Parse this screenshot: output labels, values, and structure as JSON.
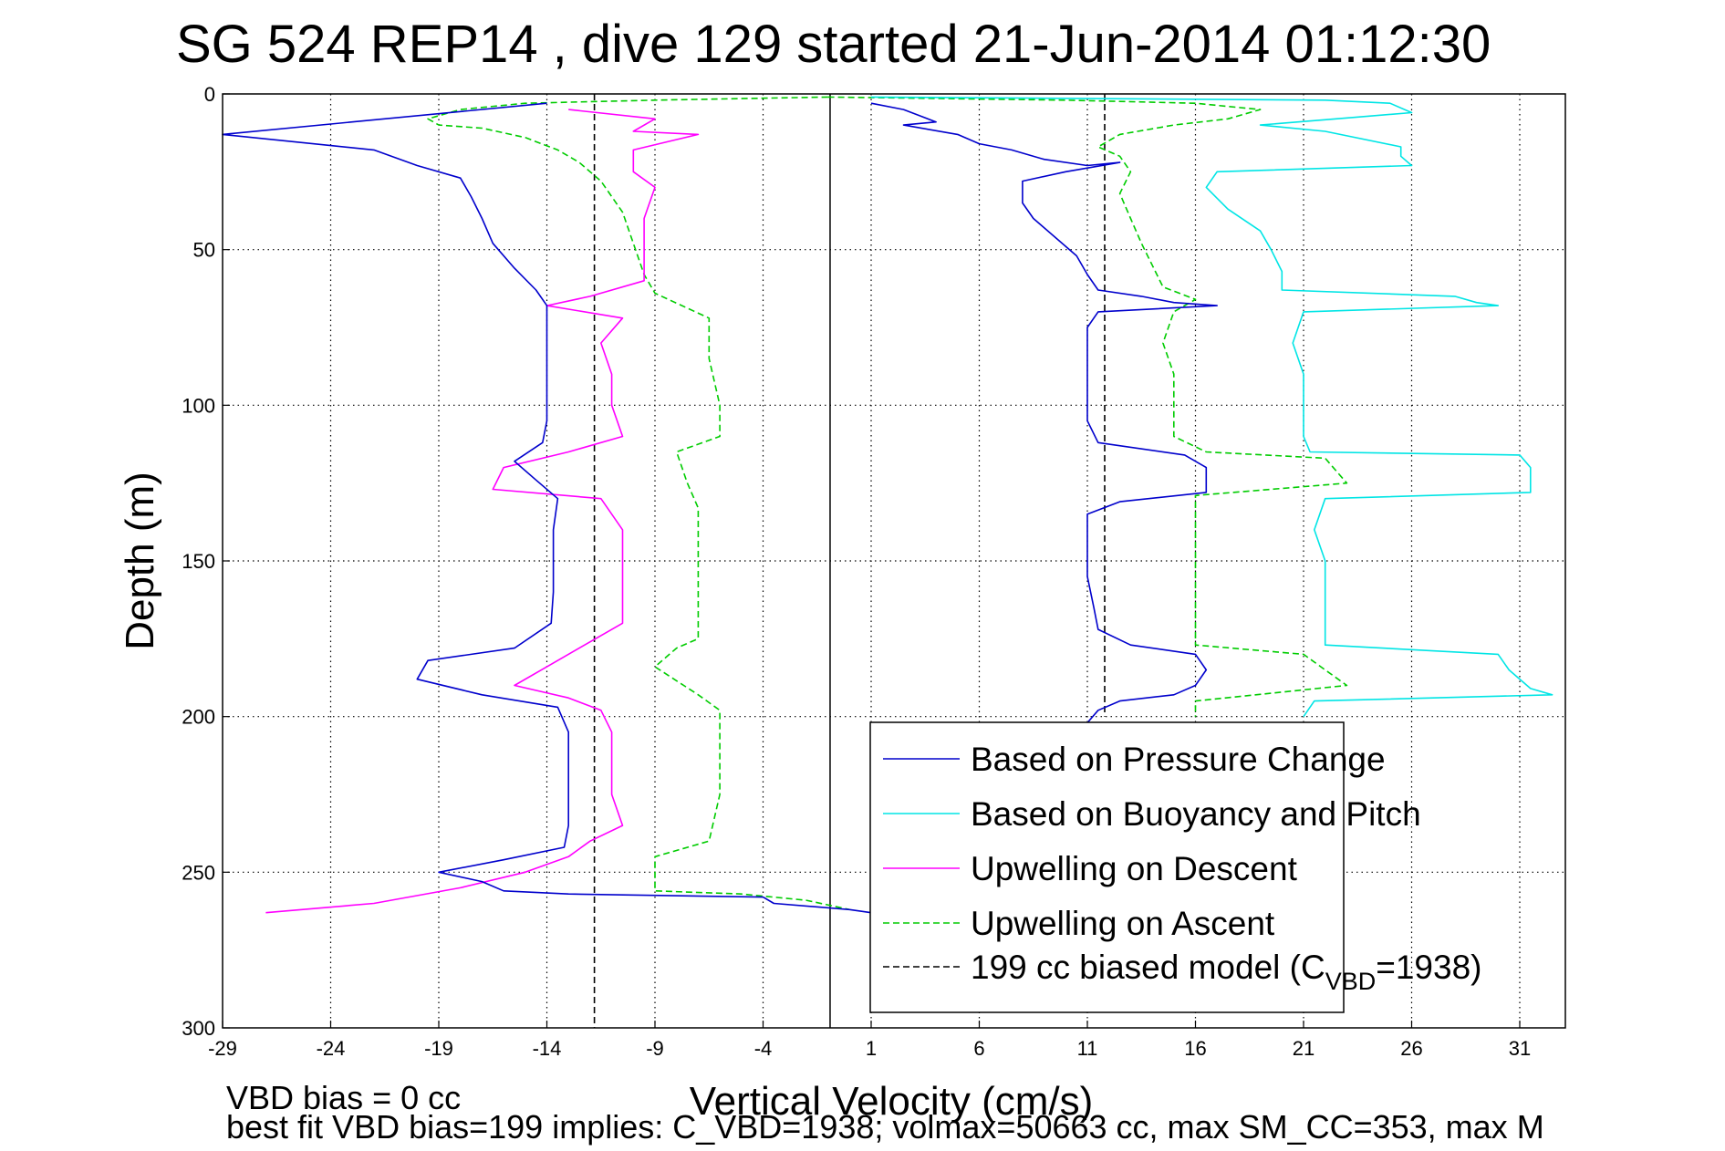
{
  "chart_data": {
    "type": "line",
    "title": "SG 524   REP14  , dive 129 started 21-Jun-2014 01:12:30",
    "xlabel": "Vertical Velocity (cm/s)",
    "ylabel": "Depth (m)",
    "xlim": [
      -29,
      33
    ],
    "ylim": [
      0,
      300
    ],
    "y_reversed": true,
    "grid": true,
    "x_ticks": [
      -29,
      -24,
      -19,
      -14,
      -9,
      -4,
      1,
      6,
      11,
      16,
      21,
      26,
      31
    ],
    "x_tick_labels": [
      "-29",
      "-24",
      "-19",
      "-14",
      "-9",
      "-4",
      "1",
      "6",
      "11",
      "16",
      "21",
      "26",
      "31"
    ],
    "y_ticks": [
      0,
      50,
      100,
      150,
      200,
      250,
      300
    ],
    "y_tick_labels": [
      "0",
      "50",
      "100",
      "150",
      "200",
      "250",
      "300"
    ],
    "vertical_reference": {
      "x": -0.9
    },
    "legend_position": "bottom-right",
    "series": [
      {
        "name": "Based on Pressure Change",
        "color": "#0000cc",
        "style": "solid",
        "points": [
          [
            -14,
            3
          ],
          [
            -29,
            13
          ],
          [
            -22,
            18
          ],
          [
            -20,
            23
          ],
          [
            -18,
            27
          ],
          [
            -17.5,
            33
          ],
          [
            -17,
            40
          ],
          [
            -16.5,
            48
          ],
          [
            -15.5,
            56
          ],
          [
            -14.5,
            63
          ],
          [
            -14,
            68
          ],
          [
            -14,
            75
          ],
          [
            -14,
            85
          ],
          [
            -14,
            95
          ],
          [
            -14,
            105
          ],
          [
            -14.2,
            112
          ],
          [
            -15.5,
            118
          ],
          [
            -14.5,
            124
          ],
          [
            -13.5,
            130
          ],
          [
            -13.7,
            140
          ],
          [
            -13.7,
            150
          ],
          [
            -13.7,
            160
          ],
          [
            -13.8,
            170
          ],
          [
            -15.5,
            178
          ],
          [
            -19.5,
            182
          ],
          [
            -20,
            188
          ],
          [
            -17,
            193
          ],
          [
            -13.5,
            197
          ],
          [
            -13,
            205
          ],
          [
            -13,
            215
          ],
          [
            -13,
            225
          ],
          [
            -13,
            235
          ],
          [
            -13.2,
            242
          ],
          [
            -16,
            246
          ],
          [
            -19,
            250
          ],
          [
            -17,
            253
          ],
          [
            -16,
            256
          ],
          [
            -13,
            257
          ],
          [
            -4,
            258
          ],
          [
            -3.5,
            260
          ],
          [
            0,
            262
          ],
          [
            1,
            263
          ]
        ],
        "points_upper": [
          [
            1,
            3
          ],
          [
            2.5,
            5
          ],
          [
            4,
            9
          ],
          [
            2.5,
            10
          ],
          [
            5,
            13
          ],
          [
            6,
            16
          ],
          [
            7.5,
            18
          ],
          [
            9,
            21
          ],
          [
            11,
            23
          ],
          [
            12.5,
            22
          ],
          [
            10,
            25
          ],
          [
            8,
            28
          ],
          [
            8,
            35
          ],
          [
            8.5,
            40
          ],
          [
            9.5,
            46
          ],
          [
            10.5,
            52
          ],
          [
            11,
            58
          ],
          [
            11.5,
            63
          ],
          [
            13.5,
            65
          ],
          [
            15,
            67
          ],
          [
            17,
            68
          ],
          [
            11.5,
            70
          ],
          [
            11,
            75
          ],
          [
            11,
            85
          ],
          [
            11,
            95
          ],
          [
            11,
            105
          ],
          [
            11.5,
            112
          ],
          [
            15.5,
            116
          ],
          [
            16.5,
            120
          ],
          [
            16.5,
            128
          ],
          [
            12.5,
            131
          ],
          [
            11,
            135
          ],
          [
            11,
            145
          ],
          [
            11,
            155
          ],
          [
            11.3,
            165
          ],
          [
            11.5,
            172
          ],
          [
            13,
            177
          ],
          [
            16,
            180
          ],
          [
            16.5,
            185
          ],
          [
            16,
            190
          ],
          [
            15,
            193
          ],
          [
            12.5,
            195
          ],
          [
            11.5,
            198
          ],
          [
            11,
            202
          ]
        ]
      },
      {
        "name": "Based on Buoyancy and Pitch",
        "color": "#00e5e5",
        "style": "solid",
        "points": [
          [
            1,
            1
          ],
          [
            22,
            2
          ],
          [
            25,
            3
          ],
          [
            26,
            6
          ],
          [
            22.5,
            8
          ],
          [
            19,
            10
          ],
          [
            22,
            12
          ],
          [
            25.5,
            17
          ],
          [
            25.5,
            20
          ],
          [
            26,
            23
          ],
          [
            17,
            25
          ],
          [
            16.5,
            30
          ],
          [
            17.5,
            37
          ],
          [
            19,
            44
          ],
          [
            19.5,
            50
          ],
          [
            20,
            57
          ],
          [
            20,
            63
          ],
          [
            28,
            65
          ],
          [
            29,
            67
          ],
          [
            30,
            68
          ],
          [
            21,
            70
          ],
          [
            20.5,
            80
          ],
          [
            21,
            90
          ],
          [
            21,
            100
          ],
          [
            21,
            110
          ],
          [
            21.3,
            115
          ],
          [
            31,
            116
          ],
          [
            31.5,
            120
          ],
          [
            31.5,
            128
          ],
          [
            22,
            130
          ],
          [
            21.5,
            140
          ],
          [
            22,
            150
          ],
          [
            22,
            160
          ],
          [
            22,
            170
          ],
          [
            22,
            177
          ],
          [
            30,
            180
          ],
          [
            30.5,
            185
          ],
          [
            31.5,
            191
          ],
          [
            32.5,
            193
          ],
          [
            21.5,
            195
          ],
          [
            21,
            200
          ]
        ]
      },
      {
        "name": "Upwelling on Descent",
        "color": "#ff00ff",
        "style": "solid",
        "points": [
          [
            -13,
            5
          ],
          [
            -9,
            8
          ],
          [
            -10,
            12
          ],
          [
            -7,
            13
          ],
          [
            -10,
            18
          ],
          [
            -10,
            25
          ],
          [
            -9,
            30
          ],
          [
            -9.5,
            40
          ],
          [
            -9.5,
            50
          ],
          [
            -9.5,
            60
          ],
          [
            -12,
            65
          ],
          [
            -14,
            68
          ],
          [
            -10.5,
            72
          ],
          [
            -11.5,
            80
          ],
          [
            -11,
            90
          ],
          [
            -11,
            100
          ],
          [
            -10.5,
            110
          ],
          [
            -13,
            115
          ],
          [
            -16,
            120
          ],
          [
            -16.5,
            127
          ],
          [
            -11.5,
            130
          ],
          [
            -10.5,
            140
          ],
          [
            -10.5,
            150
          ],
          [
            -10.5,
            160
          ],
          [
            -10.5,
            170
          ],
          [
            -12.5,
            178
          ],
          [
            -14,
            184
          ],
          [
            -15.5,
            190
          ],
          [
            -13,
            194
          ],
          [
            -11.5,
            198
          ],
          [
            -11,
            205
          ],
          [
            -11,
            215
          ],
          [
            -11,
            225
          ],
          [
            -10.5,
            235
          ],
          [
            -12,
            240
          ],
          [
            -13,
            245
          ],
          [
            -15,
            250
          ],
          [
            -18,
            255
          ],
          [
            -22,
            260
          ],
          [
            -27,
            263
          ]
        ]
      },
      {
        "name": "Upwelling on Ascent",
        "color": "#00cc00",
        "style": "dashed",
        "points": [
          [
            -1,
            1
          ],
          [
            -9,
            2
          ],
          [
            -15,
            3
          ],
          [
            -18,
            5
          ],
          [
            -19.5,
            8
          ],
          [
            -19,
            10
          ],
          [
            -17,
            11
          ],
          [
            -15,
            14
          ],
          [
            -13.5,
            18
          ],
          [
            -12.5,
            22
          ],
          [
            -11.5,
            28
          ],
          [
            -10.5,
            38
          ],
          [
            -10,
            48
          ],
          [
            -9.5,
            58
          ],
          [
            -9,
            64
          ],
          [
            -6.5,
            72
          ],
          [
            -6.5,
            85
          ],
          [
            -6,
            100
          ],
          [
            -6,
            110
          ],
          [
            -8,
            115
          ],
          [
            -7.5,
            125
          ],
          [
            -7,
            133
          ],
          [
            -7,
            145
          ],
          [
            -7,
            160
          ],
          [
            -7,
            175
          ],
          [
            -8,
            178
          ],
          [
            -9,
            184
          ],
          [
            -7,
            193
          ],
          [
            -6,
            198
          ],
          [
            -6,
            210
          ],
          [
            -6,
            225
          ],
          [
            -6.5,
            240
          ],
          [
            -9,
            245
          ],
          [
            -9,
            250
          ],
          [
            -9,
            256
          ],
          [
            -5,
            257
          ],
          [
            -2,
            259
          ],
          [
            0,
            262
          ]
        ],
        "points_upper": [
          [
            -1,
            1
          ],
          [
            10,
            2
          ],
          [
            16,
            3
          ],
          [
            17.5,
            4
          ],
          [
            19,
            5
          ],
          [
            17.5,
            8
          ],
          [
            15,
            10
          ],
          [
            12.5,
            13
          ],
          [
            11.5,
            17
          ],
          [
            12.5,
            20
          ],
          [
            13,
            25
          ],
          [
            12.5,
            32
          ],
          [
            13,
            40
          ],
          [
            13.5,
            48
          ],
          [
            14,
            55
          ],
          [
            14.5,
            62
          ],
          [
            16,
            66
          ],
          [
            15,
            70
          ],
          [
            14.5,
            80
          ],
          [
            15,
            90
          ],
          [
            15,
            100
          ],
          [
            15,
            110
          ],
          [
            16.5,
            115
          ],
          [
            22,
            117
          ],
          [
            23,
            125
          ],
          [
            16,
            129
          ],
          [
            16,
            140
          ],
          [
            16,
            150
          ],
          [
            16,
            160
          ],
          [
            16,
            170
          ],
          [
            16,
            177
          ],
          [
            21,
            180
          ],
          [
            22,
            185
          ],
          [
            23,
            190
          ],
          [
            16,
            195
          ],
          [
            16,
            200
          ]
        ]
      },
      {
        "name": "199 cc biased model (C_VBD=1938)",
        "color": "#000000",
        "style": "dashed",
        "points_lower": [
          [
            -11.8,
            0
          ],
          [
            -11.8,
            300
          ]
        ],
        "points_upper": [
          [
            11.8,
            0
          ],
          [
            11.8,
            200
          ]
        ]
      }
    ],
    "legend": [
      {
        "key": "pressure",
        "label": "Based on Pressure Change",
        "color": "#0000cc",
        "dash": false
      },
      {
        "key": "buoyancy",
        "label": "Based on Buoyancy and Pitch",
        "color": "#00e5e5",
        "dash": false
      },
      {
        "key": "descent",
        "label": "Upwelling on Descent",
        "color": "#ff00ff",
        "dash": false
      },
      {
        "key": "ascent",
        "label": "Upwelling on Ascent",
        "color": "#00cc00",
        "dash": true
      },
      {
        "key": "model",
        "label_main": "199 cc biased model (C",
        "label_sub": "VBD",
        "label_tail": "=1938)",
        "color": "#000000",
        "dash": true
      }
    ],
    "annotations": {
      "bias_line": "VBD bias = 0 cc",
      "fit_line": "best fit VBD bias=199 implies: C_VBD=1938; volmax=50663 cc, max SM_CC=353, max M"
    }
  }
}
